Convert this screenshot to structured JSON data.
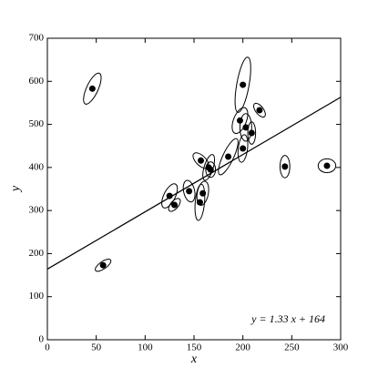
{
  "chart_data": {
    "type": "scatter",
    "x_label": "x",
    "y_label": "y",
    "xlim": [
      0,
      300
    ],
    "ylim": [
      0,
      700
    ],
    "xticks": [
      0,
      50,
      100,
      150,
      200,
      250,
      300
    ],
    "yticks": [
      0,
      100,
      200,
      300,
      400,
      500,
      600,
      700
    ],
    "series": [
      {
        "color": "#000000",
        "x": [
          46,
          57,
          200,
          197,
          203,
          217,
          209,
          200,
          185,
          157,
          165,
          167,
          125,
          130,
          145,
          159,
          156,
          243,
          286
        ],
        "values": [
          583,
          173,
          592,
          509,
          493,
          533,
          480,
          444,
          425,
          416,
          400,
          395,
          334,
          313,
          345,
          340,
          319,
          402,
          404
        ],
        "x_err": [
          9,
          8,
          8,
          8,
          6,
          6,
          4,
          5,
          10,
          8,
          6,
          5,
          8,
          6,
          6,
          6,
          5,
          5,
          9
        ],
        "y_err": [
          36,
          14,
          64,
          30,
          32,
          16,
          26,
          32,
          42,
          18,
          30,
          18,
          28,
          15,
          25,
          28,
          42,
          26,
          16
        ],
        "rho": [
          0.7,
          0.7,
          0.6,
          0.5,
          0,
          -0.6,
          0,
          0.3,
          0.8,
          -0.6,
          0.6,
          0,
          0.6,
          0.6,
          -0.3,
          0.3,
          0.3,
          0,
          0
        ]
      }
    ],
    "fit": {
      "slope": 1.33,
      "intercept": 164,
      "color": "#000000",
      "label": "y = 1.33 x + 164"
    }
  }
}
